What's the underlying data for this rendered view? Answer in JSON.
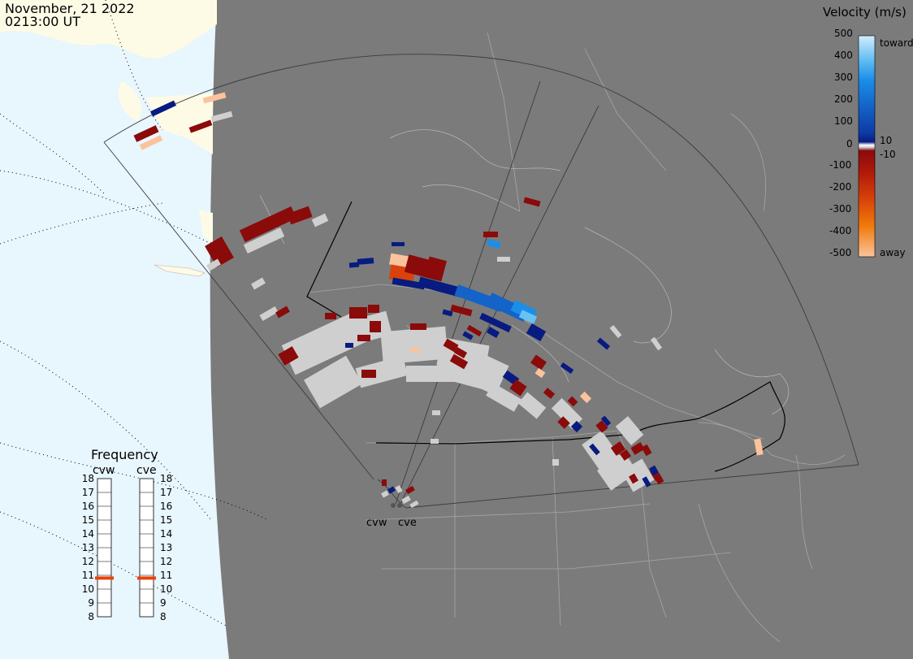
{
  "header": {
    "date": "November, 21 2022",
    "time": "0213:00 UT"
  },
  "legend": {
    "title": "Velocity (m/s)",
    "ticks": [
      "500",
      "400",
      "300",
      "200",
      "100",
      "10",
      "0",
      "-10",
      "-100",
      "-200",
      "-300",
      "-400",
      "-500"
    ],
    "toward_label": "toward",
    "away_label": "away",
    "colors": [
      "#d4ecfb",
      "#6ac2f3",
      "#1a8ee8",
      "#1463c9",
      "#0d3ba4",
      "#071b80",
      "#ffffff",
      "#cfcfcf",
      "#8b0a0a",
      "#b01a0a",
      "#d9420a",
      "#f07a0a",
      "#fbc39d"
    ]
  },
  "frequency": {
    "title": "Frequency",
    "radars": [
      "cvw",
      "cve"
    ],
    "scale": [
      "18",
      "17",
      "16",
      "15",
      "14",
      "13",
      "12",
      "11",
      "10",
      "9",
      "8"
    ],
    "values_mhz": [
      10.8,
      10.8
    ],
    "marker_color": "#e8430a"
  },
  "sites": [
    "cvw",
    "cve"
  ],
  "colors": {
    "land": "#7b7b7b",
    "ocean": "#e8f6fd",
    "polar_land": "#fdfbe6",
    "ground_scatter": "#cfcfcf",
    "borders": "#a0a0a0",
    "fov": "#3c3c3c"
  }
}
